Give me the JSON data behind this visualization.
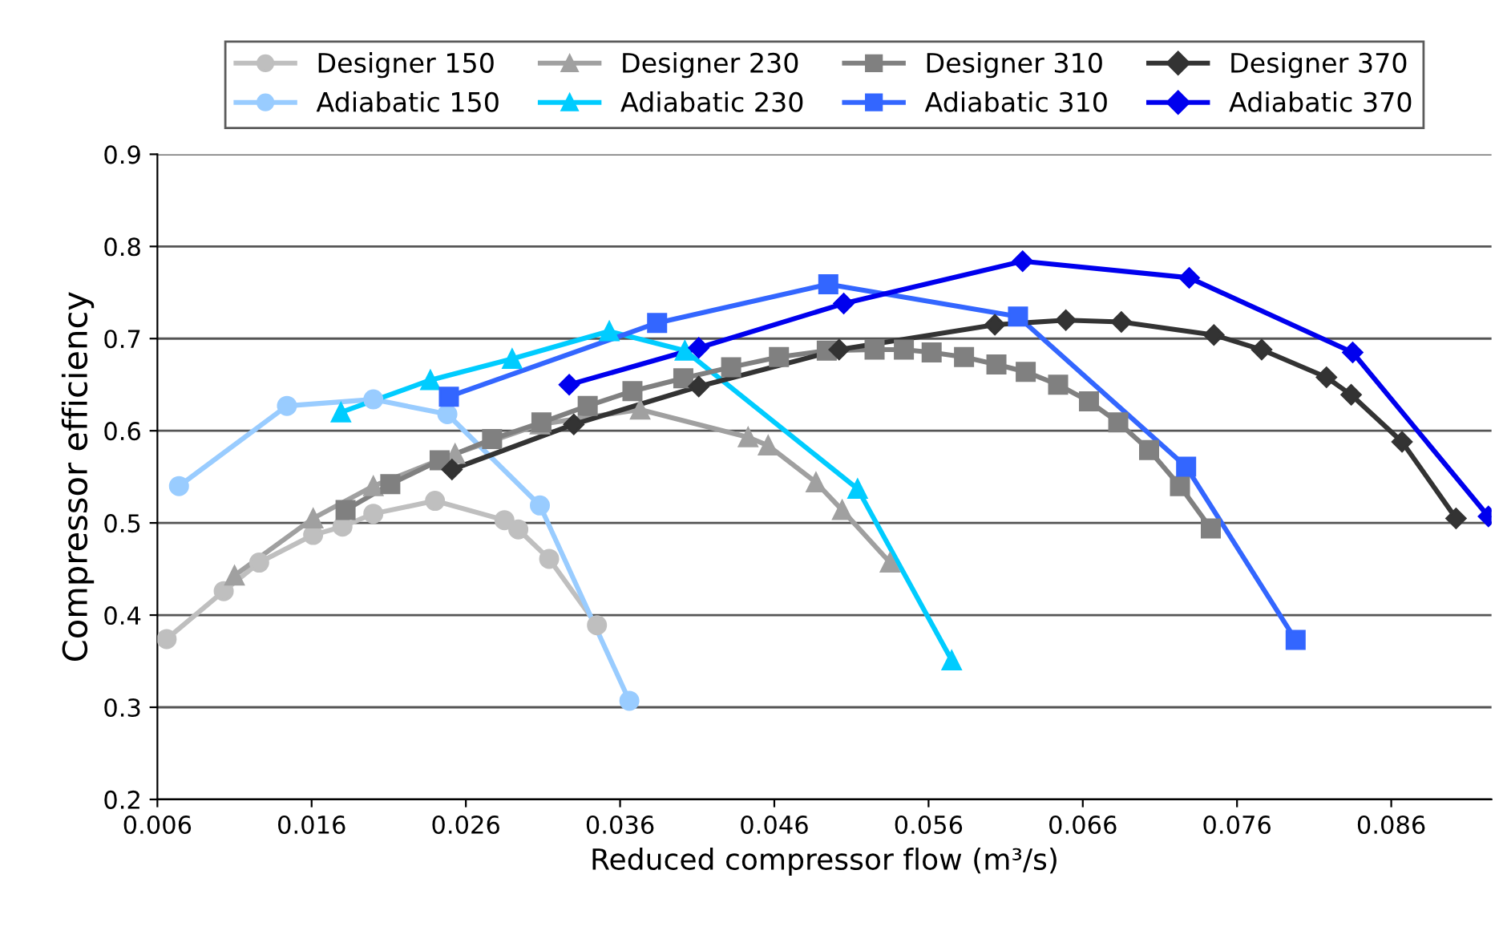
{
  "chart_data": {
    "type": "line",
    "xlabel": "Reduced compressor flow (m³/s)",
    "ylabel": "Compressor efficiency",
    "xlim": [
      0.006,
      0.0925
    ],
    "xticks": [
      {
        "value": 0.006,
        "label": "0.006"
      },
      {
        "value": 0.016,
        "label": "0.016"
      },
      {
        "value": 0.026,
        "label": "0.026"
      },
      {
        "value": 0.036,
        "label": "0.036"
      },
      {
        "value": 0.046,
        "label": "0.046"
      },
      {
        "value": 0.056,
        "label": "0.056"
      },
      {
        "value": 0.066,
        "label": "0.066"
      },
      {
        "value": 0.076,
        "label": "0.076"
      },
      {
        "value": 0.086,
        "label": "0.086"
      }
    ],
    "ylim": [
      0.2,
      0.9
    ],
    "yticks": [
      0.2,
      0.3,
      0.4,
      0.5,
      0.6,
      0.7,
      0.8,
      0.9
    ],
    "grid": "y",
    "legend": "top",
    "series": [
      {
        "name": "Designer 150",
        "color": "#bfbfbf",
        "marker": "circle",
        "x": [
          0.0066,
          0.0103,
          0.0126,
          0.0161,
          0.018,
          0.02,
          0.024,
          0.0285,
          0.0294,
          0.0314,
          0.0345
        ],
        "values": [
          0.374,
          0.426,
          0.457,
          0.487,
          0.496,
          0.51,
          0.524,
          0.503,
          0.493,
          0.461,
          0.389
        ]
      },
      {
        "name": "Adiabatic 150",
        "color": "#99ccff",
        "marker": "circle",
        "x": [
          0.0074,
          0.0144,
          0.02,
          0.0248,
          0.0308,
          0.0366
        ],
        "values": [
          0.54,
          0.627,
          0.634,
          0.618,
          0.519,
          0.307
        ]
      },
      {
        "name": "Designer 230",
        "color": "#a0a0a0",
        "marker": "triangle",
        "x": [
          0.011,
          0.0161,
          0.02,
          0.0253,
          0.0308,
          0.0373,
          0.0443,
          0.0456,
          0.0487,
          0.0504,
          0.0535
        ],
        "values": [
          0.443,
          0.505,
          0.54,
          0.575,
          0.607,
          0.623,
          0.593,
          0.584,
          0.544,
          0.514,
          0.457
        ]
      },
      {
        "name": "Adiabatic 230",
        "color": "#00ccff",
        "marker": "triangle",
        "x": [
          0.0179,
          0.0237,
          0.029,
          0.0353,
          0.0402,
          0.0514,
          0.0575
        ],
        "values": [
          0.62,
          0.655,
          0.678,
          0.708,
          0.687,
          0.537,
          0.351
        ]
      },
      {
        "name": "Designer 310",
        "color": "#808080",
        "marker": "square",
        "x": [
          0.0182,
          0.0211,
          0.0243,
          0.0277,
          0.0309,
          0.0339,
          0.0368,
          0.0401,
          0.0432,
          0.0463,
          0.0494,
          0.0525,
          0.0544,
          0.0562,
          0.0583,
          0.0604,
          0.0623,
          0.0644,
          0.0664,
          0.0683,
          0.0703,
          0.0723,
          0.0743
        ],
        "values": [
          0.514,
          0.542,
          0.568,
          0.591,
          0.609,
          0.627,
          0.643,
          0.657,
          0.669,
          0.68,
          0.687,
          0.688,
          0.688,
          0.685,
          0.68,
          0.672,
          0.664,
          0.65,
          0.632,
          0.609,
          0.579,
          0.54,
          0.494
        ]
      },
      {
        "name": "Adiabatic 310",
        "color": "#3366ff",
        "marker": "square",
        "x": [
          0.0249,
          0.0384,
          0.0495,
          0.0618,
          0.0727,
          0.0798
        ],
        "values": [
          0.637,
          0.717,
          0.759,
          0.724,
          0.561,
          0.373
        ]
      },
      {
        "name": "Designer 370",
        "color": "#333333",
        "marker": "diamond",
        "x": [
          0.0251,
          0.033,
          0.0411,
          0.0502,
          0.0603,
          0.0649,
          0.0685,
          0.0745,
          0.0776,
          0.0818,
          0.0834,
          0.0867,
          0.0902
        ],
        "values": [
          0.558,
          0.607,
          0.648,
          0.688,
          0.715,
          0.72,
          0.718,
          0.704,
          0.688,
          0.658,
          0.639,
          0.588,
          0.505
        ]
      },
      {
        "name": "Adiabatic 370",
        "color": "#0000ee",
        "marker": "diamond",
        "x": [
          0.0327,
          0.0411,
          0.0505,
          0.0621,
          0.0729,
          0.0835,
          0.0923
        ],
        "values": [
          0.65,
          0.69,
          0.738,
          0.784,
          0.766,
          0.685,
          0.507
        ]
      }
    ]
  }
}
